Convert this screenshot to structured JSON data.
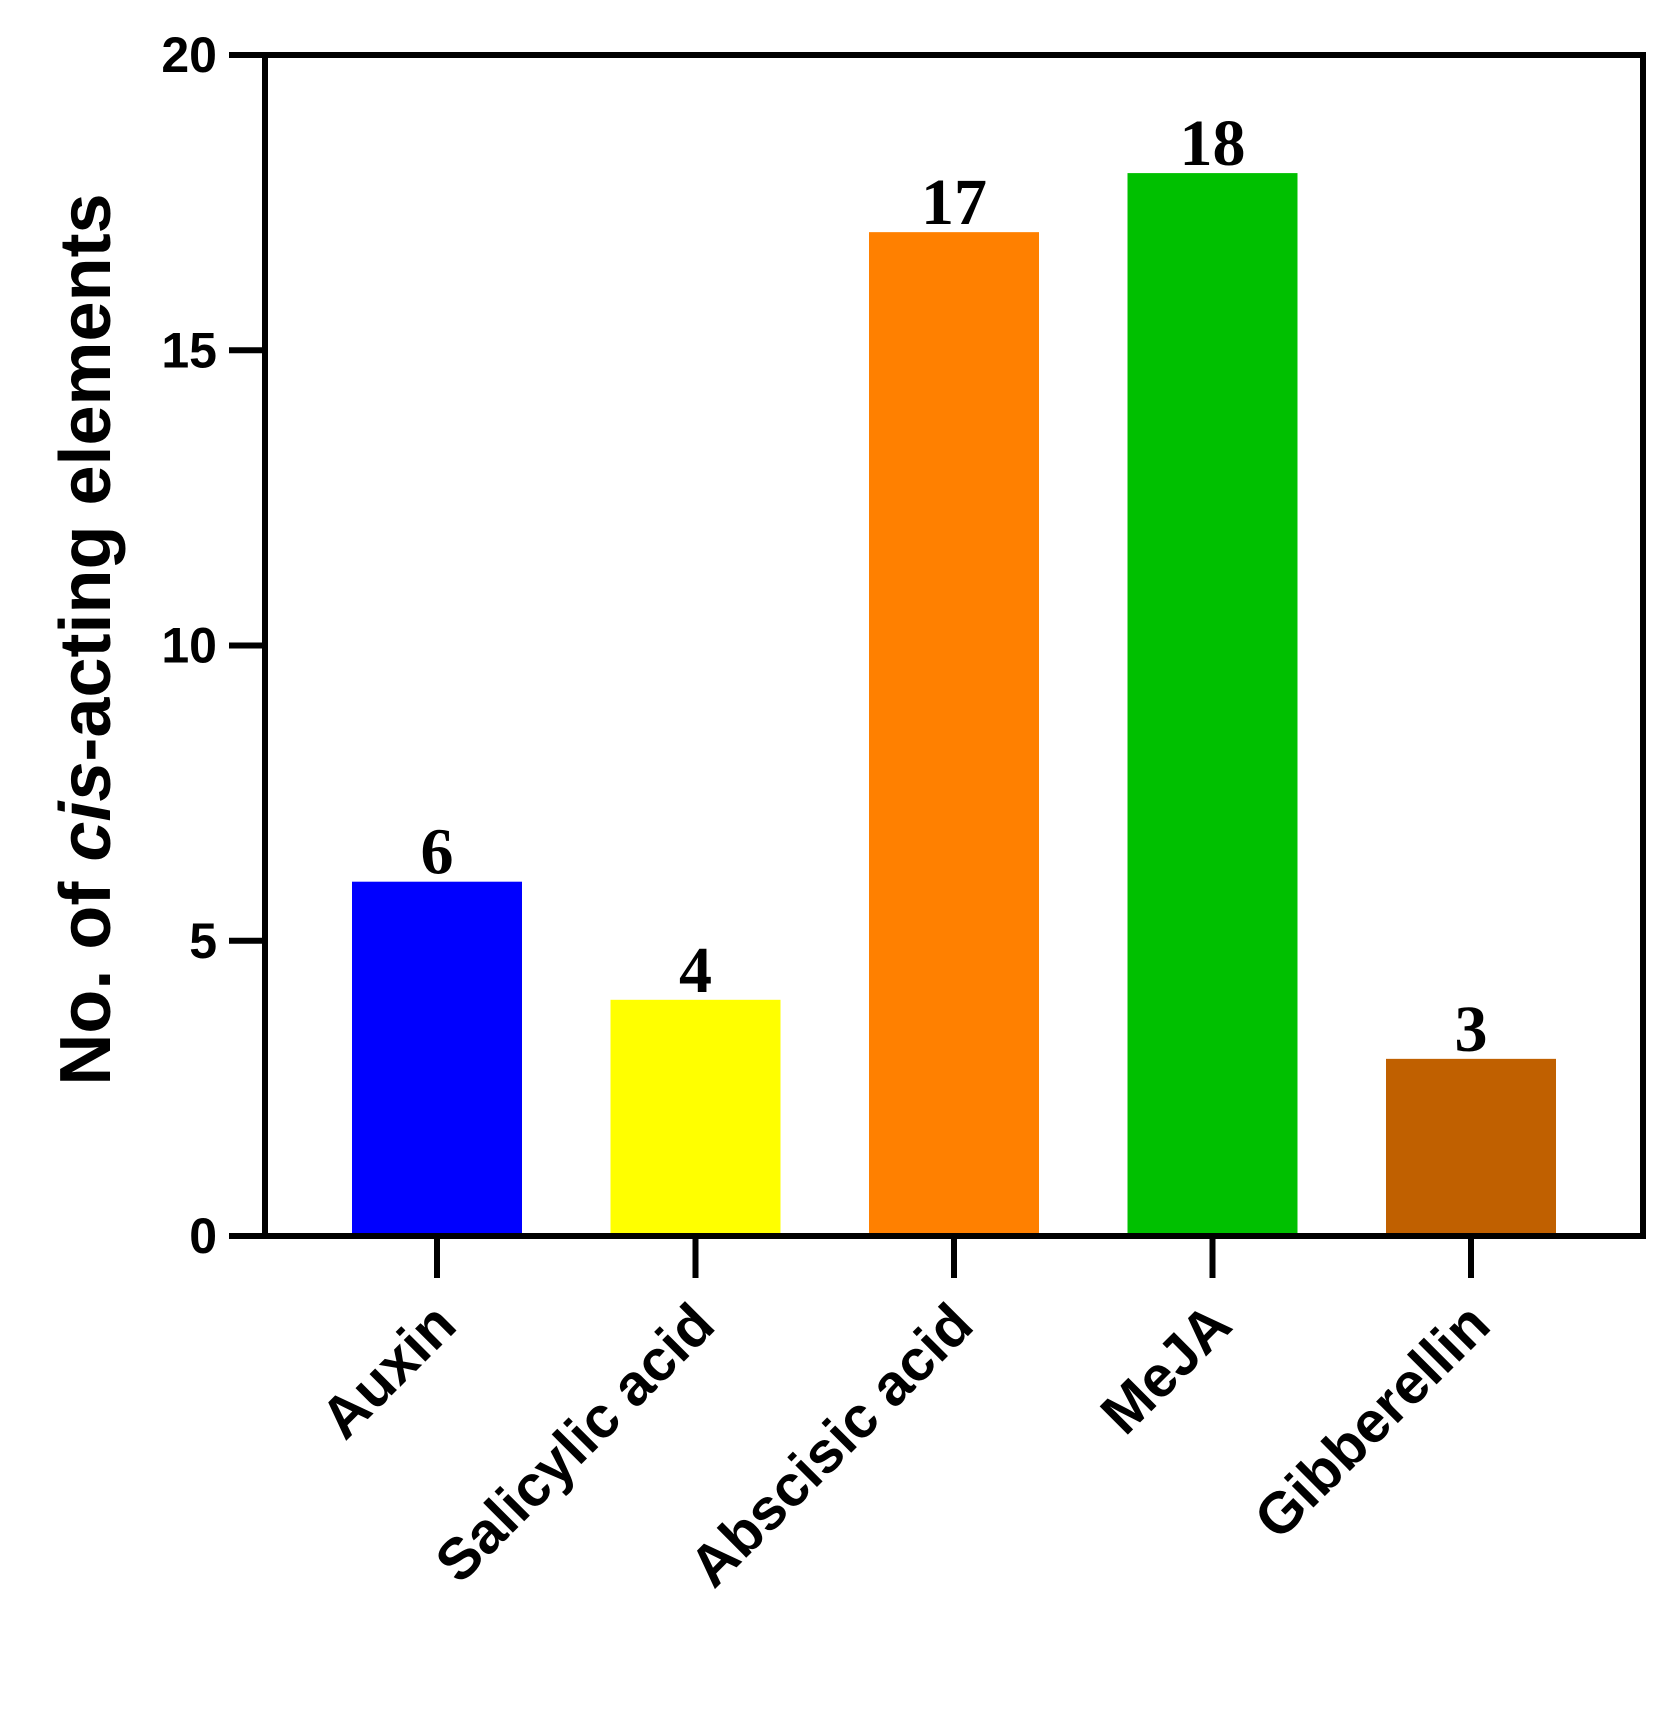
{
  "chart_data": {
    "type": "bar",
    "categories": [
      "Auxin",
      "Salicylic acid",
      "Abscisic acid",
      "MeJA",
      "Gibberellin"
    ],
    "values": [
      6,
      4,
      17,
      18,
      3
    ],
    "data_labels": [
      "6",
      "4",
      "17",
      "18",
      "3"
    ],
    "colors": [
      "#0000ff",
      "#ffff00",
      "#ff8000",
      "#00c000",
      "#c06000"
    ],
    "ylabel_parts": [
      "No. of ",
      "cis",
      "-acting elements"
    ],
    "ylim": [
      0,
      20
    ],
    "yticks": [
      0,
      5,
      10,
      15,
      20
    ],
    "ytick_labels": [
      "0",
      "5",
      "10",
      "15",
      "20"
    ],
    "grid": false
  }
}
